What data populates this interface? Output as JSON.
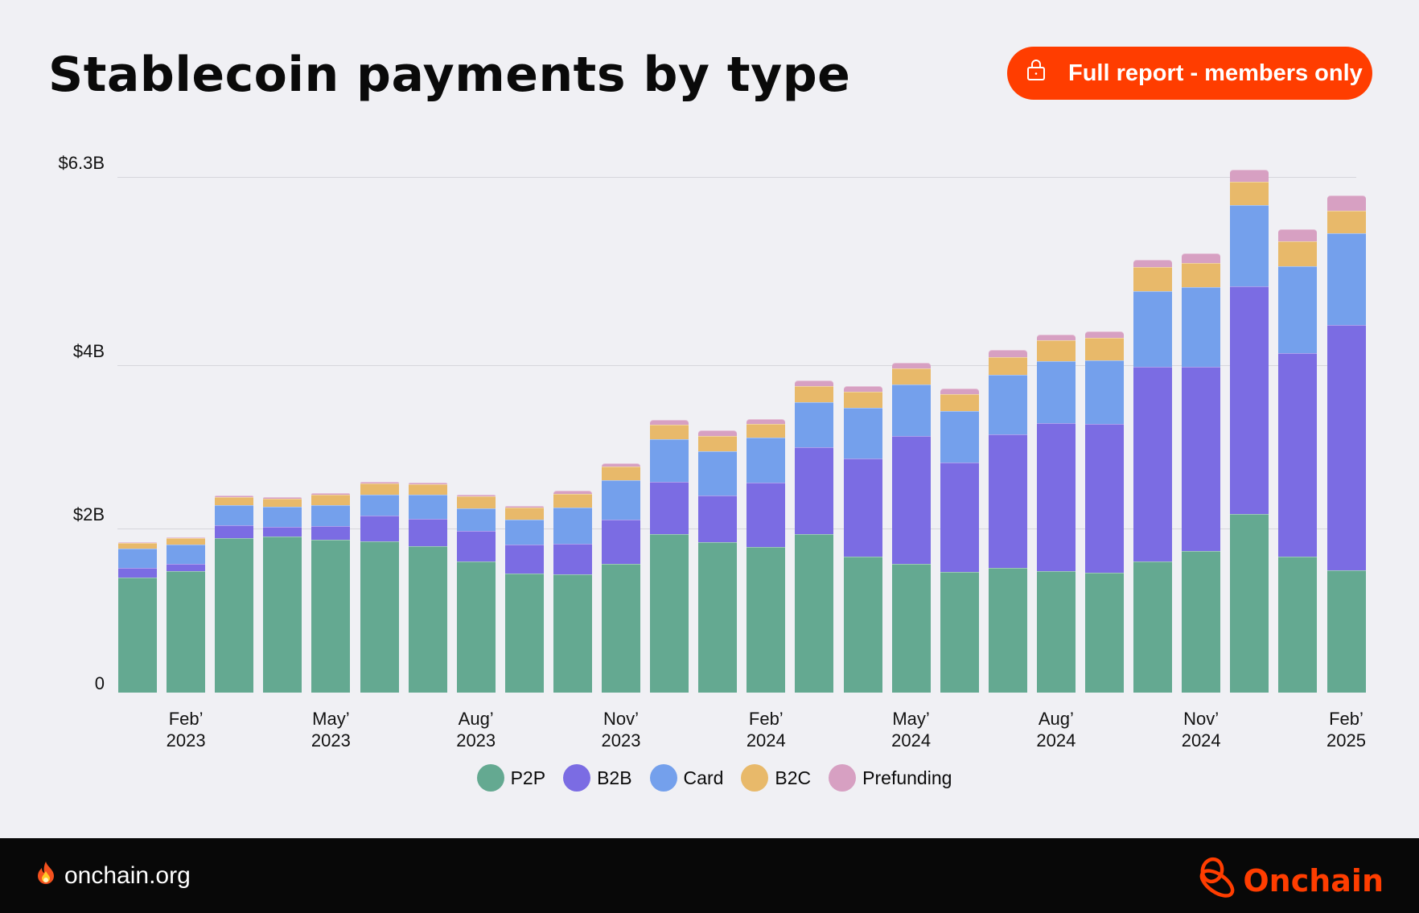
{
  "header": {
    "title": "Stablecoin payments by type",
    "cta_label": "Full report - members only",
    "cta_icon": "lock-icon"
  },
  "footer": {
    "site": "onchain.org",
    "site_icon": "fire-icon",
    "brand": "Onchain",
    "brand_icon": "onchain-logo-icon"
  },
  "colors": {
    "accent": "#ff3d00",
    "P2P": "#64a991",
    "B2B": "#7b6ce3",
    "Card": "#74a0ec",
    "B2C": "#e8b96a",
    "Prefunding": "#d7a0c2"
  },
  "chart_data": {
    "type": "bar",
    "stacked": true,
    "title": "Stablecoin payments by type",
    "xlabel": "",
    "ylabel": "",
    "ylim": [
      0,
      6.3
    ],
    "yticks": [
      0,
      2,
      4,
      6.3
    ],
    "ytick_labels": [
      "0",
      "$2B",
      "$4B",
      "$6.3B"
    ],
    "grid": true,
    "legend_position": "bottom",
    "categories": [
      "Jan 2023",
      "Feb 2023",
      "Mar 2023",
      "Apr 2023",
      "May 2023",
      "Jun 2023",
      "Jul 2023",
      "Aug 2023",
      "Sep 2023",
      "Oct 2023",
      "Nov 2023",
      "Dec 2023",
      "Jan 2024",
      "Feb 2024",
      "Mar 2024",
      "Apr 2024",
      "May 2024",
      "Jun 2024",
      "Jul 2024",
      "Aug 2024",
      "Sep 2024",
      "Oct 2024",
      "Nov 2024",
      "Dec 2024",
      "Jan 2025",
      "Feb 2025"
    ],
    "xtick_labels": [
      {
        "index": 1,
        "line1": "Feb’",
        "line2": "2023"
      },
      {
        "index": 4,
        "line1": "May’",
        "line2": "2023"
      },
      {
        "index": 7,
        "line1": "Aug’",
        "line2": "2023"
      },
      {
        "index": 10,
        "line1": "Nov’",
        "line2": "2023"
      },
      {
        "index": 13,
        "line1": "Feb’",
        "line2": "2024"
      },
      {
        "index": 16,
        "line1": "May’",
        "line2": "2024"
      },
      {
        "index": 19,
        "line1": "Aug’",
        "line2": "2024"
      },
      {
        "index": 22,
        "line1": "Nov’",
        "line2": "2024"
      },
      {
        "index": 25,
        "line1": "Feb’",
        "line2": "2025"
      }
    ],
    "series": [
      {
        "name": "P2P",
        "values": [
          1.4,
          1.48,
          1.89,
          1.91,
          1.87,
          1.85,
          1.79,
          1.6,
          1.45,
          1.44,
          1.57,
          1.94,
          1.84,
          1.78,
          1.94,
          1.66,
          1.57,
          1.47,
          1.52,
          1.48,
          1.46,
          1.6,
          1.73,
          2.18,
          1.66,
          1.49
        ]
      },
      {
        "name": "B2B",
        "values": [
          0.12,
          0.09,
          0.15,
          0.11,
          0.16,
          0.31,
          0.33,
          0.37,
          0.36,
          0.38,
          0.54,
          0.63,
          0.57,
          0.78,
          1.06,
          1.2,
          1.56,
          1.34,
          1.63,
          1.81,
          1.82,
          2.38,
          2.25,
          2.78,
          2.49,
          3.0
        ]
      },
      {
        "name": "Card",
        "values": [
          0.24,
          0.24,
          0.25,
          0.25,
          0.26,
          0.26,
          0.3,
          0.28,
          0.3,
          0.44,
          0.48,
          0.52,
          0.54,
          0.55,
          0.55,
          0.62,
          0.63,
          0.63,
          0.73,
          0.76,
          0.78,
          0.92,
          0.97,
          0.99,
          1.06,
          1.12
        ]
      },
      {
        "name": "B2C",
        "values": [
          0.07,
          0.08,
          0.1,
          0.1,
          0.13,
          0.13,
          0.12,
          0.15,
          0.15,
          0.17,
          0.17,
          0.18,
          0.18,
          0.17,
          0.19,
          0.19,
          0.2,
          0.2,
          0.22,
          0.25,
          0.27,
          0.3,
          0.3,
          0.29,
          0.3,
          0.27
        ]
      },
      {
        "name": "Prefunding",
        "values": [
          0.01,
          0.01,
          0.02,
          0.02,
          0.02,
          0.02,
          0.02,
          0.02,
          0.02,
          0.04,
          0.04,
          0.06,
          0.07,
          0.06,
          0.07,
          0.07,
          0.07,
          0.07,
          0.08,
          0.07,
          0.08,
          0.09,
          0.11,
          0.15,
          0.15,
          0.19
        ]
      }
    ]
  },
  "legend": [
    {
      "label": "P2P",
      "key": "P2P"
    },
    {
      "label": "B2B",
      "key": "B2B"
    },
    {
      "label": "Card",
      "key": "Card"
    },
    {
      "label": "B2C",
      "key": "B2C"
    },
    {
      "label": "Prefunding",
      "key": "Prefunding"
    }
  ]
}
